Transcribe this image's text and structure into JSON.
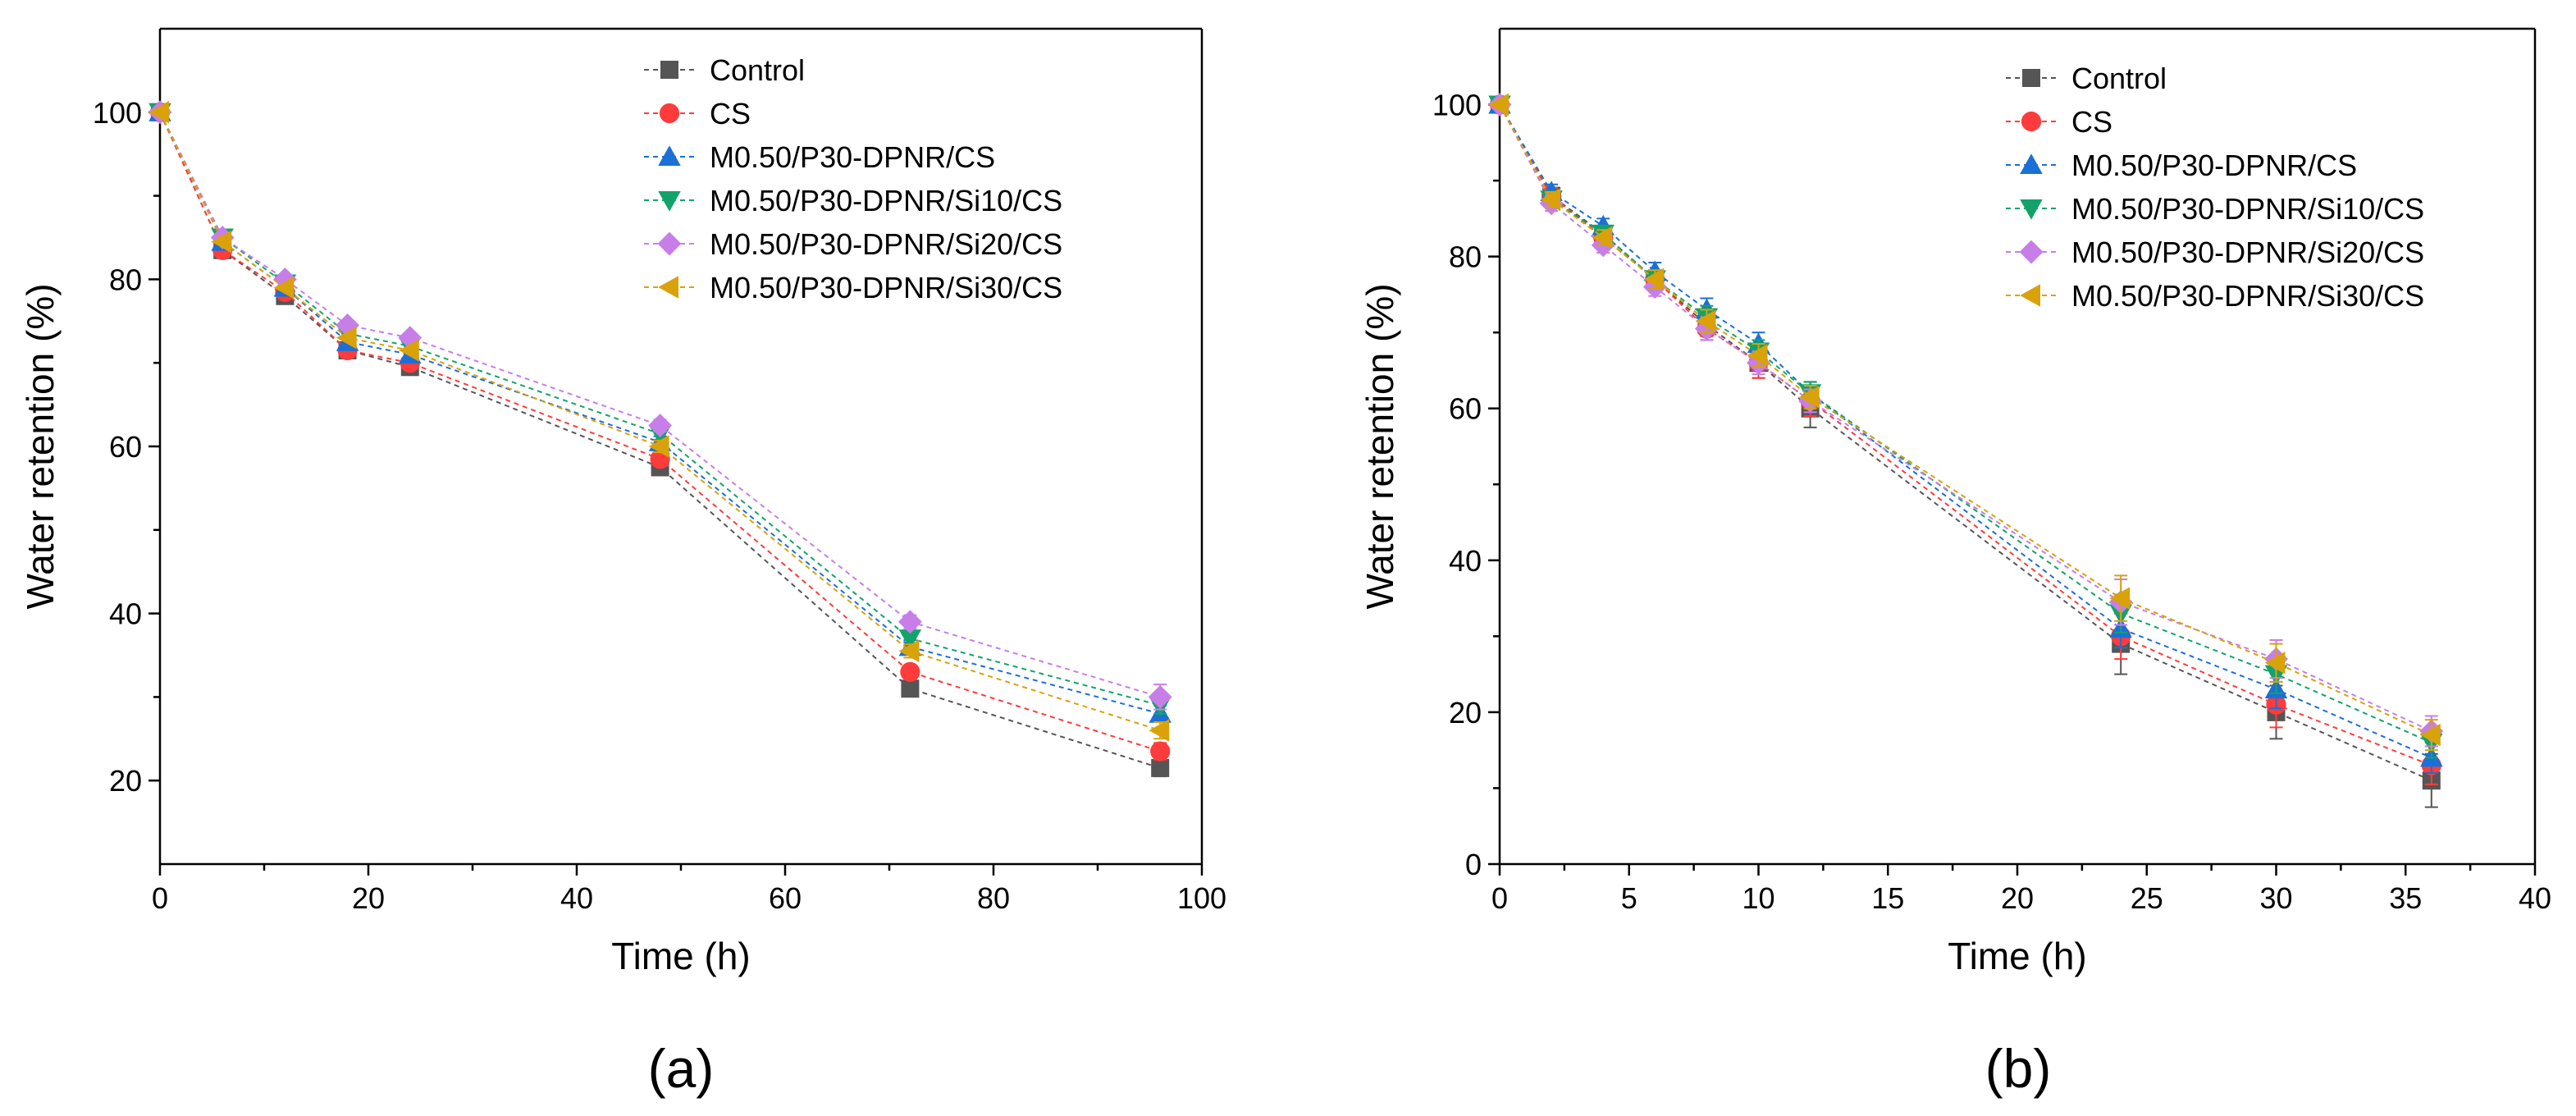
{
  "chart_data": [
    {
      "type": "line",
      "panel_label": "(a)",
      "xlabel": "Time (h)",
      "ylabel": "Water retention (%)",
      "xlim": [
        0,
        100
      ],
      "ylim": [
        10,
        110
      ],
      "xticks": [
        0,
        20,
        40,
        60,
        80,
        100
      ],
      "yticks": [
        20,
        40,
        60,
        80,
        100
      ],
      "legend_position": "top-center",
      "x": [
        0,
        6,
        12,
        18,
        24,
        48,
        72,
        96
      ],
      "series": [
        {
          "name": "Control",
          "marker": "square",
          "color": "#555555",
          "values": [
            100,
            83.5,
            78,
            71.5,
            69.5,
            57.5,
            31,
            21.5
          ],
          "errors": [
            0.5,
            0.6,
            0.6,
            0.6,
            0.6,
            0.7,
            0.8,
            1.0
          ]
        },
        {
          "name": "CS",
          "marker": "circle",
          "color": "#ff3b3b",
          "values": [
            100,
            83.5,
            78.5,
            71.5,
            70,
            58.5,
            33,
            23.5
          ],
          "errors": [
            0.5,
            0.6,
            0.6,
            0.6,
            0.6,
            0.7,
            0.8,
            1.0
          ]
        },
        {
          "name": "M0.50/P30-DPNR/CS",
          "marker": "triangle-up",
          "color": "#1b6fd6",
          "values": [
            100,
            84.5,
            79,
            72.5,
            71,
            60.5,
            36,
            28
          ],
          "errors": [
            0.5,
            0.6,
            0.6,
            0.6,
            0.6,
            0.7,
            0.8,
            1.0
          ]
        },
        {
          "name": "M0.50/P30-DPNR/Si10/CS",
          "marker": "triangle-down",
          "color": "#13a36a",
          "values": [
            100,
            85,
            79.5,
            73.5,
            72,
            61.5,
            37,
            29
          ],
          "errors": [
            0.5,
            0.6,
            0.6,
            0.6,
            0.6,
            0.7,
            0.8,
            1.0
          ]
        },
        {
          "name": "M0.50/P30-DPNR/Si20/CS",
          "marker": "diamond",
          "color": "#c77ee8",
          "values": [
            100,
            85,
            80,
            74.5,
            73,
            62.5,
            39,
            30
          ],
          "errors": [
            0.5,
            0.6,
            0.6,
            0.6,
            0.6,
            0.7,
            0.8,
            1.5
          ]
        },
        {
          "name": "M0.50/P30-DPNR/Si30/CS",
          "marker": "triangle-left",
          "color": "#d9a20b",
          "values": [
            100,
            84.5,
            79,
            73,
            71.5,
            60,
            35.5,
            26
          ],
          "errors": [
            0.5,
            0.6,
            0.6,
            0.6,
            0.6,
            0.7,
            0.8,
            1.0
          ]
        }
      ]
    },
    {
      "type": "line",
      "panel_label": "(b)",
      "xlabel": "Time (h)",
      "ylabel": "Water retention (%)",
      "xlim": [
        0,
        40
      ],
      "ylim": [
        0,
        110
      ],
      "xticks": [
        0,
        5,
        10,
        15,
        20,
        25,
        30,
        35,
        40
      ],
      "yticks": [
        0,
        20,
        40,
        60,
        80,
        100
      ],
      "legend_position": "top-right",
      "x": [
        0,
        2,
        4,
        6,
        8,
        10,
        12,
        24,
        30,
        36
      ],
      "series": [
        {
          "name": "Control",
          "marker": "square",
          "color": "#555555",
          "values": [
            100,
            88,
            83,
            77,
            71,
            66,
            60,
            29,
            20,
            11
          ],
          "errors": [
            0.5,
            1.0,
            1.0,
            1.2,
            1.5,
            2.0,
            2.5,
            4.0,
            3.5,
            3.5
          ]
        },
        {
          "name": "CS",
          "marker": "circle",
          "color": "#ff3b3b",
          "values": [
            100,
            88,
            82.5,
            77,
            70.5,
            66,
            61,
            30,
            21,
            13
          ],
          "errors": [
            0.5,
            1.0,
            1.0,
            1.2,
            1.5,
            2.0,
            2.0,
            3.0,
            3.0,
            2.5
          ]
        },
        {
          "name": "M0.50/P30-DPNR/CS",
          "marker": "triangle-up",
          "color": "#1b6fd6",
          "values": [
            100,
            88.5,
            84,
            78,
            73,
            68.5,
            62,
            31,
            23,
            14
          ],
          "errors": [
            0.5,
            1.0,
            1.0,
            1.2,
            1.5,
            1.5,
            1.5,
            2.5,
            2.5,
            2.0
          ]
        },
        {
          "name": "M0.50/P30-DPNR/Si10/CS",
          "marker": "triangle-down",
          "color": "#13a36a",
          "values": [
            100,
            87.5,
            83,
            77,
            72,
            67.5,
            62,
            33,
            25,
            16
          ],
          "errors": [
            0.5,
            1.0,
            1.0,
            1.2,
            1.5,
            1.5,
            1.5,
            2.5,
            2.5,
            2.0
          ]
        },
        {
          "name": "M0.50/P30-DPNR/Si20/CS",
          "marker": "diamond",
          "color": "#c77ee8",
          "values": [
            100,
            87,
            81.5,
            76,
            70.5,
            66,
            61,
            34.5,
            27,
            17.5
          ],
          "errors": [
            0.5,
            1.0,
            1.0,
            1.2,
            1.5,
            1.5,
            1.5,
            3.0,
            2.5,
            2.0
          ]
        },
        {
          "name": "M0.50/P30-DPNR/Si30/CS",
          "marker": "triangle-left",
          "color": "#d9a20b",
          "values": [
            100,
            87.5,
            82.5,
            77,
            71.5,
            67,
            61.5,
            35,
            26.5,
            17
          ],
          "errors": [
            0.5,
            1.0,
            1.0,
            1.2,
            1.5,
            1.5,
            1.5,
            3.0,
            2.5,
            2.0
          ]
        }
      ]
    }
  ]
}
